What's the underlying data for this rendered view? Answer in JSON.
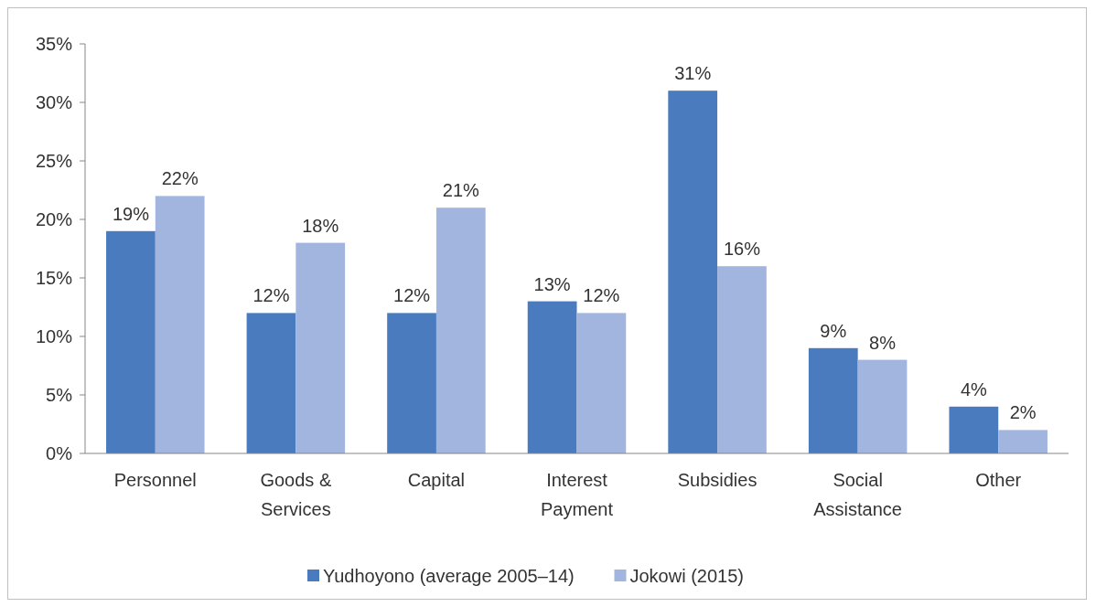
{
  "chart_data": {
    "type": "bar",
    "categories": [
      "Personnel",
      "Goods & Services",
      "Capital",
      "Interest Payment",
      "Subsidies",
      "Social Assistance",
      "Other"
    ],
    "series": [
      {
        "name": "Yudhoyono (average 2005–14)",
        "color": "#4a7bbe",
        "values": [
          19,
          12,
          12,
          13,
          31,
          9,
          4
        ],
        "value_labels": [
          "19%",
          "12%",
          "12%",
          "13%",
          "31%",
          "9%",
          "4%"
        ]
      },
      {
        "name": "Jokowi (2015)",
        "color": "#a2b5de",
        "values": [
          22,
          18,
          21,
          12,
          16,
          8,
          2
        ],
        "value_labels": [
          "22%",
          "18%",
          "21%",
          "12%",
          "16%",
          "8%",
          "2%"
        ]
      }
    ],
    "ylim": [
      0,
      35
    ],
    "yticks": [
      {
        "value": 0,
        "label": "0%"
      },
      {
        "value": 5,
        "label": "5%"
      },
      {
        "value": 10,
        "label": "10%"
      },
      {
        "value": 15,
        "label": "15%"
      },
      {
        "value": 20,
        "label": "20%"
      },
      {
        "value": 25,
        "label": "25%"
      },
      {
        "value": 30,
        "label": "30%"
      },
      {
        "value": 35,
        "label": "35%"
      }
    ],
    "grid": false,
    "legend": "bottom"
  }
}
